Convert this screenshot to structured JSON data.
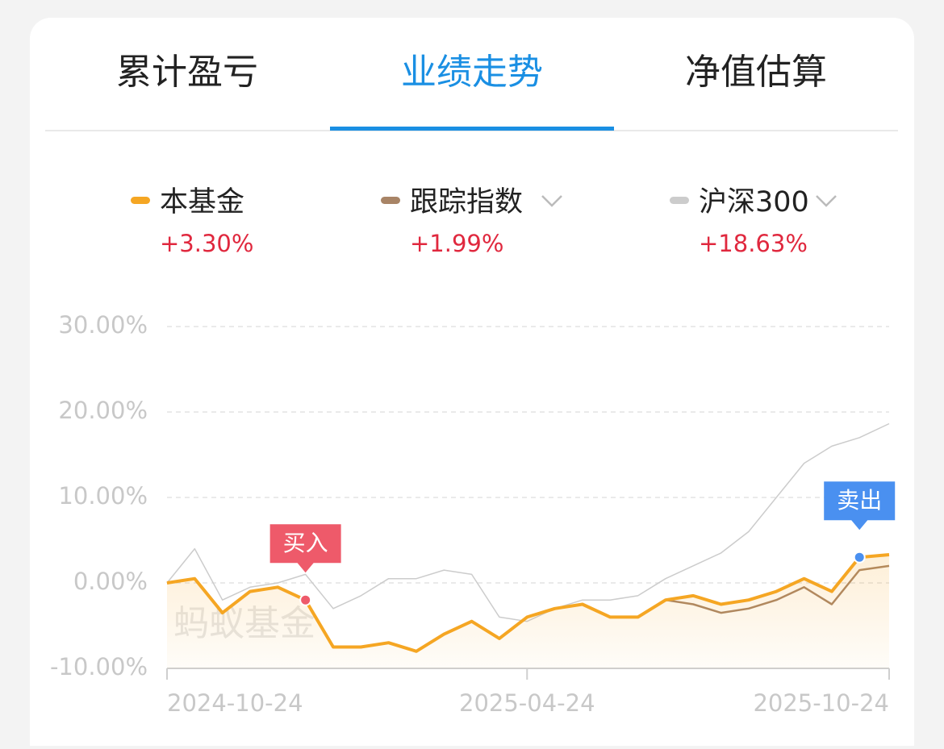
{
  "tabs": [
    "累计盈亏",
    "业绩走势",
    "净值估算"
  ],
  "active_tab": 1,
  "legend_returns": [
    "+3.30%",
    "+1.99%",
    "+18.63%"
  ],
  "watermark": "蚂蚁基金",
  "chart_data": {
    "type": "line",
    "x": [
      "2024-10-24",
      "2024-11-07",
      "2024-11-21",
      "2024-12-05",
      "2024-12-19",
      "2025-01-02",
      "2025-01-16",
      "2025-01-30",
      "2025-02-13",
      "2025-02-27",
      "2025-03-13",
      "2025-03-27",
      "2025-04-10",
      "2025-04-24",
      "2025-05-08",
      "2025-05-22",
      "2025-06-05",
      "2025-06-19",
      "2025-07-03",
      "2025-07-17",
      "2025-07-31",
      "2025-08-14",
      "2025-08-28",
      "2025-09-11",
      "2025-09-25",
      "2025-10-09",
      "2025-10-24"
    ],
    "series": [
      {
        "name": "沪深300",
        "color": "#cccccc",
        "values": [
          0,
          4,
          -2,
          -0.5,
          0,
          1,
          -3,
          -1.5,
          0.5,
          0.5,
          1.5,
          1,
          -4,
          -4.5,
          -3,
          -2,
          -2,
          -1.5,
          0.5,
          2,
          3.5,
          6,
          10,
          14,
          16,
          17,
          18.63
        ]
      },
      {
        "name": "跟踪指数",
        "color": "#a88466",
        "values": [
          0,
          0.5,
          -3.5,
          -1,
          -0.5,
          -2,
          -7.5,
          -7.5,
          -7,
          -8,
          -6,
          -4.5,
          -6.5,
          -4,
          -3,
          -2.5,
          -4,
          -4,
          -2,
          -2.5,
          -3.5,
          -3,
          -2,
          -0.5,
          -2.5,
          1.5,
          1.99
        ]
      },
      {
        "name": "本基金",
        "color": "#f5a623",
        "values": [
          0,
          0.5,
          -3.5,
          -1,
          -0.5,
          -2,
          -7.5,
          -7.5,
          -7,
          -8,
          -6,
          -4.5,
          -6.5,
          -4,
          -3,
          -2.5,
          -4,
          -4,
          -2,
          -1.5,
          -2.5,
          -2,
          -1,
          0.5,
          -1,
          3,
          3.3
        ]
      }
    ],
    "ylim": [
      -10,
      30
    ],
    "yticks": [
      {
        "value": -10,
        "label": "-10.00%"
      },
      {
        "value": 0,
        "label": "0.00%"
      },
      {
        "value": 10,
        "label": "10.00%"
      },
      {
        "value": 20,
        "label": "20.00%"
      },
      {
        "value": 30,
        "label": "30.00%"
      }
    ],
    "xlim": [
      "2024-10-24",
      "2025-10-24"
    ],
    "xticks": [
      "2024-10-24",
      "2025-04-24",
      "2025-10-24"
    ],
    "grid": true,
    "annotations": [
      {
        "text": "买入",
        "x": "2025-01-02",
        "color": "#ee5a6a"
      },
      {
        "text": "卖出",
        "x": "2025-10-09",
        "color": "#4a90f0"
      }
    ]
  }
}
